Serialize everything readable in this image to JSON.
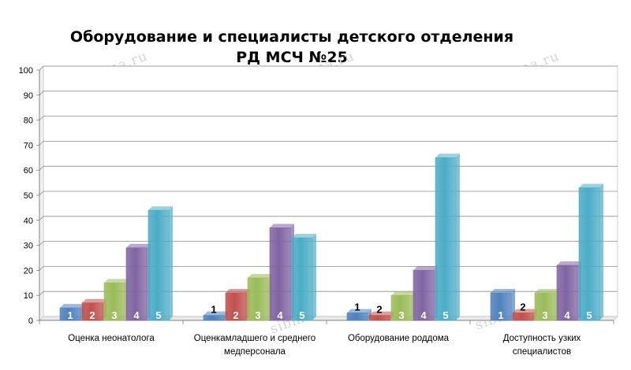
{
  "chart_data": {
    "type": "bar",
    "title_lines": [
      "Оборудование и специалисты детского отделения",
      "РД МСЧ №25"
    ],
    "xlabel": "",
    "ylabel": "",
    "ylim": [
      0,
      100
    ],
    "yticks": [
      "0",
      "10",
      "20",
      "30",
      "40",
      "50",
      "60",
      "70",
      "80",
      "90",
      "100"
    ],
    "grid": true,
    "legend": "none",
    "categories": [
      [
        "Оценка неонатолога"
      ],
      [
        "Оценкамладшего и среднего",
        "медперсонала"
      ],
      [
        "Оборудование роддома"
      ],
      [
        "Доступность узких",
        "специалистов"
      ]
    ],
    "series": [
      {
        "bar_label": "1",
        "color": "#4f81bd",
        "values": [
          5,
          2,
          3,
          11
        ]
      },
      {
        "bar_label": "2",
        "color": "#c0504d",
        "values": [
          7,
          11,
          2,
          3
        ]
      },
      {
        "bar_label": "3",
        "color": "#9bbb59",
        "values": [
          15,
          17,
          10,
          11
        ]
      },
      {
        "bar_label": "4",
        "color": "#8064a2",
        "values": [
          29,
          37,
          20,
          22
        ]
      },
      {
        "bar_label": "5",
        "color": "#4bacc6",
        "values": [
          44,
          33,
          65,
          53
        ]
      }
    ]
  },
  "watermark": "sibmama.ru"
}
